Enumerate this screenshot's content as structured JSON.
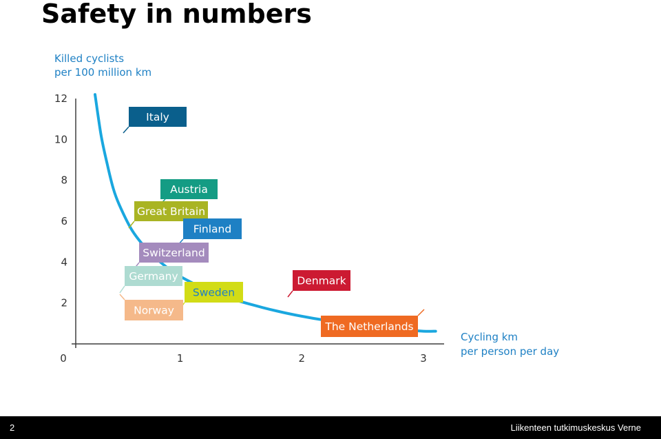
{
  "slide": {
    "title": "Safety in numbers",
    "page_number": "2",
    "organization": "Liikenteen tutkimuskeskus Verne"
  },
  "chart_data": {
    "type": "line",
    "title": "",
    "ylabel_lines": [
      "Killed cyclists",
      "per 100 million km"
    ],
    "xlabel_lines": [
      "Cycling km",
      "per person per day"
    ],
    "xlim": [
      0,
      3
    ],
    "ylim": [
      0,
      12
    ],
    "x_ticks": [
      "0",
      "1",
      "2",
      "3"
    ],
    "y_ticks": [
      "2",
      "4",
      "6",
      "8",
      "10",
      "12"
    ],
    "grid": false,
    "curve_color": "#1aa7df",
    "curve": {
      "x": [
        0.3,
        0.35,
        0.4,
        0.45,
        0.5,
        0.6,
        0.7,
        0.8,
        0.9,
        1.0,
        1.2,
        1.4,
        1.6,
        1.8,
        2.0,
        2.2,
        2.4,
        2.6,
        2.8,
        3.0,
        3.1
      ],
      "y": [
        12.2,
        10.2,
        8.8,
        7.6,
        6.8,
        5.6,
        4.8,
        4.2,
        3.7,
        3.3,
        2.7,
        2.25,
        1.9,
        1.6,
        1.35,
        1.15,
        1.0,
        0.85,
        0.72,
        0.62,
        0.62
      ]
    },
    "countries": [
      {
        "name": "Italy",
        "color": "#0a5f8c"
      },
      {
        "name": "Austria",
        "color": "#149c84"
      },
      {
        "name": "Great Britain",
        "color": "#a9b423"
      },
      {
        "name": "Finland",
        "color": "#1e80c4"
      },
      {
        "name": "Switzerland",
        "color": "#a48bbd"
      },
      {
        "name": "Germany",
        "color": "#aedbd1"
      },
      {
        "name": "Sweden",
        "color": "#d2dc16"
      },
      {
        "name": "Norway",
        "color": "#f5b98a"
      },
      {
        "name": "Denmark",
        "color": "#cc1a32"
      },
      {
        "name": "The Netherlands",
        "color": "#ef6a22"
      }
    ]
  }
}
